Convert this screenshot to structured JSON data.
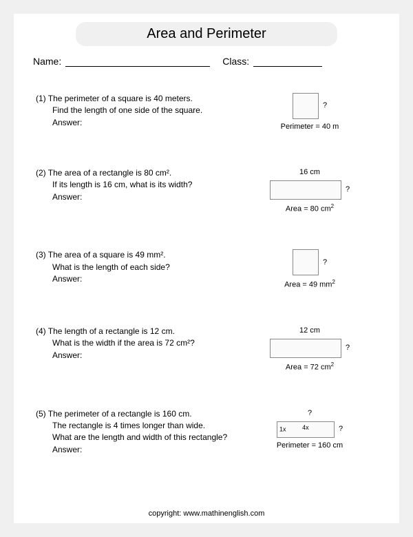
{
  "title": "Area and Perimeter",
  "name_label": "Name:",
  "class_label": "Class:",
  "problems": [
    {
      "num": "(1)",
      "line1": "The perimeter of a square is 40 meters.",
      "line2": "Find the length of one side of the square.",
      "answer_label": "Answer:",
      "top_label": "",
      "qmark": "?",
      "bottom_label": "Perimeter = 40 m",
      "bottom_sup": "",
      "shape_class": "sq1"
    },
    {
      "num": "(2)",
      "line1": "The area of a  rectangle is 80 cm².",
      "line2": "If its length is 16 cm, what is its width?",
      "answer_label": "Answer:",
      "top_label": "16 cm",
      "qmark": "?",
      "bottom_label": "Area = 80 cm",
      "bottom_sup": "2",
      "shape_class": "rect1"
    },
    {
      "num": "(3)",
      "line1": "The area of a  square is 49 mm².",
      "line2": "What is the length of each side?",
      "answer_label": "Answer:",
      "top_label": "",
      "qmark": "?",
      "bottom_label": "Area = 49 mm",
      "bottom_sup": "2",
      "shape_class": "sq2"
    },
    {
      "num": "(4)",
      "line1": "The length of a rectangle is 12 cm.",
      "line2": "What is the width if the area is 72 cm²?",
      "answer_label": "Answer:",
      "top_label": "12 cm",
      "qmark": "?",
      "bottom_label": "Area = 72 cm",
      "bottom_sup": "2",
      "shape_class": "rect2"
    },
    {
      "num": "(5)",
      "line1": "The perimeter of a rectangle is 160 cm.",
      "line2": "The rectangle is 4 times longer than wide.",
      "line3": "What are the length and width of this rectangle?",
      "answer_label": "Answer:",
      "top_label": "?",
      "qmark": "?",
      "bottom_label": "Perimeter = 160 cm",
      "bottom_sup": "",
      "shape_class": "rect3",
      "inner_1x": "1x",
      "inner_4x": "4x"
    }
  ],
  "copyright": "copyright:   www.mathinenglish.com"
}
